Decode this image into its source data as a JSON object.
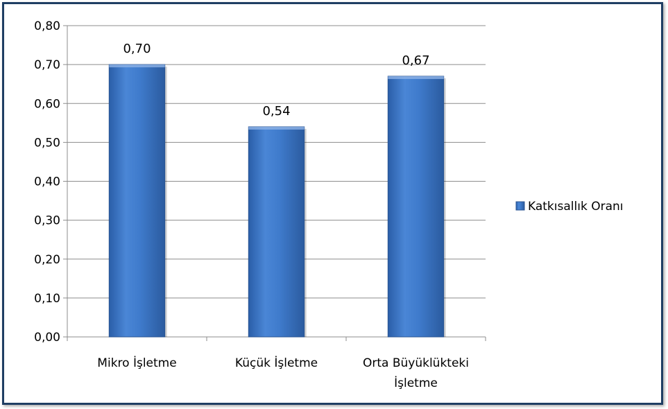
{
  "chart_data": {
    "type": "bar",
    "categories": [
      [
        "Mikro İşletme"
      ],
      [
        "Küçük İşletme"
      ],
      [
        "Orta Büyüklükteki",
        "İşletme"
      ]
    ],
    "series": [
      {
        "name": "Katkısallık Oranı",
        "values": [
          0.7,
          0.54,
          0.67
        ],
        "color": "#3e78c8"
      }
    ],
    "data_labels": [
      "0,70",
      "0,54",
      "0,67"
    ],
    "y_ticks": [
      0,
      0.1,
      0.2,
      0.3,
      0.4,
      0.5,
      0.6,
      0.7,
      0.8
    ],
    "y_tick_labels": [
      "0,00",
      "0,10",
      "0,20",
      "0,30",
      "0,40",
      "0,50",
      "0,60",
      "0,70",
      "0,80"
    ],
    "ylim": [
      0,
      0.8
    ],
    "grid": true,
    "legend_position": "right"
  }
}
